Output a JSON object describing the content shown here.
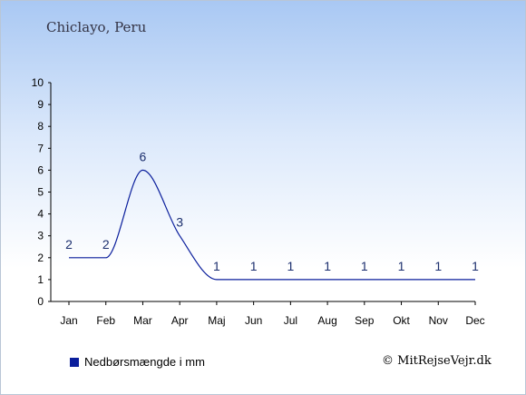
{
  "header": {
    "location": "Chiclayo, Peru"
  },
  "legend": {
    "label": "Nedbørsmængde i mm",
    "color": "#0a1e9c"
  },
  "credit": {
    "text": "© MitRejseVejr.dk"
  },
  "colors": {
    "line": "#0a1e9c",
    "label": "#1c2f6e",
    "axis": "#000000"
  },
  "chart_data": {
    "type": "line",
    "title": "Chiclayo, Peru",
    "categories": [
      "Jan",
      "Feb",
      "Mar",
      "Apr",
      "Maj",
      "Jun",
      "Jul",
      "Aug",
      "Sep",
      "Okt",
      "Nov",
      "Dec"
    ],
    "values": [
      2,
      2,
      6,
      3,
      1,
      1,
      1,
      1,
      1,
      1,
      1,
      1
    ],
    "data_labels": [
      "2",
      "2",
      "6",
      "3",
      "1",
      "1",
      "1",
      "1",
      "1",
      "1",
      "1",
      "1"
    ],
    "series": [
      {
        "name": "Nedbørsmængde i mm",
        "values": [
          2,
          2,
          6,
          3,
          1,
          1,
          1,
          1,
          1,
          1,
          1,
          1
        ]
      }
    ],
    "yticks": [
      0,
      1,
      2,
      3,
      4,
      5,
      6,
      7,
      8,
      9,
      10
    ],
    "ylim": [
      0,
      10
    ],
    "xlabel": "",
    "ylabel": "",
    "grid": false,
    "smooth": true,
    "legend_position": "bottom-left"
  }
}
